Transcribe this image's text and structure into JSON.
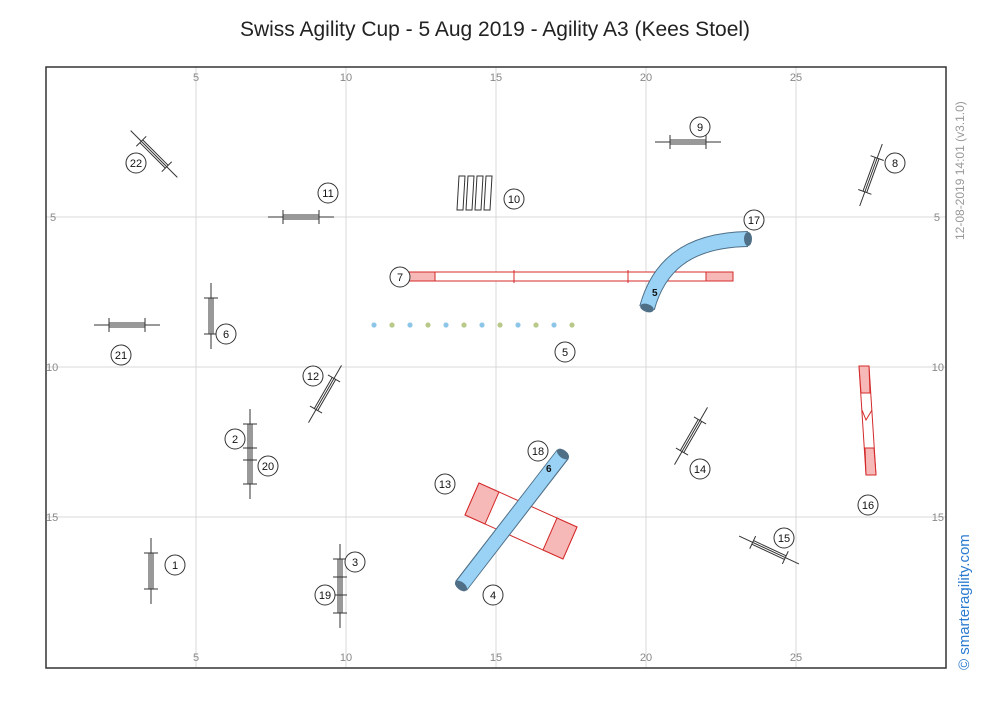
{
  "title": "Swiss Agility Cup - 5 Aug 2019 - Agility A3 (Kees Stoel)",
  "timestamp": "12-08-2019 14:01  (v3.1.0)",
  "watermark": "© smarteragility.com",
  "ticks_x": [
    "5",
    "10",
    "15",
    "20",
    "25"
  ],
  "ticks_y": [
    "5",
    "10",
    "15"
  ],
  "colors": {
    "grid": "#d8d8d8",
    "border": "#333333",
    "tunnel": "#99d2f5",
    "tunnel_end": "#4f6f87",
    "contact_zone": "#f7b8b8",
    "contact_line": "#d42a2a",
    "weave_a": "#8ec6e8",
    "weave_b": "#b9c98a",
    "brand": "#2b7bd0"
  },
  "course": {
    "jumps": [
      {
        "number": "1",
        "x": 3.5,
        "y": 16.8,
        "angle": 90
      },
      {
        "number": "2",
        "x": 6.8,
        "y": 12.5,
        "angle": 90
      },
      {
        "number": "3",
        "x": 9.8,
        "y": 17.0,
        "angle": 90
      },
      {
        "number": "6",
        "x": 5.5,
        "y": 8.3,
        "angle": 90
      },
      {
        "number": "8",
        "x": 27.5,
        "y": 3.6,
        "angle": 110
      },
      {
        "number": "9",
        "x": 21.4,
        "y": 2.5,
        "angle": 0
      },
      {
        "number": "11",
        "x": 8.5,
        "y": 5.0,
        "angle": 0
      },
      {
        "number": "12",
        "x": 9.3,
        "y": 10.9,
        "angle": 120
      },
      {
        "number": "14",
        "x": 21.5,
        "y": 12.3,
        "angle": 120
      },
      {
        "number": "15",
        "x": 24.1,
        "y": 16.1,
        "angle": 25
      },
      {
        "number": "19",
        "x": 9.8,
        "y": 17.6,
        "angle": 90
      },
      {
        "number": "20",
        "x": 6.8,
        "y": 13.3,
        "angle": 90
      },
      {
        "number": "21",
        "x": 2.7,
        "y": 8.6,
        "angle": 0
      },
      {
        "number": "22",
        "x": 3.6,
        "y": 2.9,
        "angle": 45
      }
    ],
    "tunnels": [
      {
        "numbers": [
          "5",
          "17"
        ],
        "end_label": "5"
      },
      {
        "numbers": [
          "4",
          "18"
        ],
        "end_label": "6"
      }
    ],
    "dogwalk": {
      "number": "7"
    },
    "seesaw": {
      "number": "16"
    },
    "aframe": {
      "number": "13"
    },
    "weaves": {
      "number": "5",
      "poles": 12
    },
    "tire": {
      "number": "10"
    },
    "labels": [
      {
        "text": "22",
        "x": 3.0,
        "y": 3.2
      },
      {
        "text": "11",
        "x": 9.4,
        "y": 4.2
      },
      {
        "text": "10",
        "x": 15.6,
        "y": 4.4
      },
      {
        "text": "9",
        "x": 21.8,
        "y": 2.0
      },
      {
        "text": "8",
        "x": 28.3,
        "y": 3.2
      },
      {
        "text": "17",
        "x": 23.6,
        "y": 5.1
      },
      {
        "text": "7",
        "x": 11.8,
        "y": 7.0
      },
      {
        "text": "21",
        "x": 2.5,
        "y": 9.6
      },
      {
        "text": "6",
        "x": 6.0,
        "y": 8.9
      },
      {
        "text": "5",
        "x": 17.3,
        "y": 9.5
      },
      {
        "text": "12",
        "x": 8.9,
        "y": 10.3
      },
      {
        "text": "2",
        "x": 6.3,
        "y": 12.4
      },
      {
        "text": "20",
        "x": 7.4,
        "y": 13.3
      },
      {
        "text": "18",
        "x": 16.4,
        "y": 12.8
      },
      {
        "text": "13",
        "x": 13.3,
        "y": 13.9
      },
      {
        "text": "14",
        "x": 21.8,
        "y": 13.4
      },
      {
        "text": "16",
        "x": 27.4,
        "y": 14.6
      },
      {
        "text": "15",
        "x": 24.6,
        "y": 15.7
      },
      {
        "text": "1",
        "x": 4.3,
        "y": 16.6
      },
      {
        "text": "3",
        "x": 10.3,
        "y": 16.5
      },
      {
        "text": "19",
        "x": 9.3,
        "y": 17.6
      },
      {
        "text": "4",
        "x": 14.9,
        "y": 17.6
      }
    ]
  }
}
